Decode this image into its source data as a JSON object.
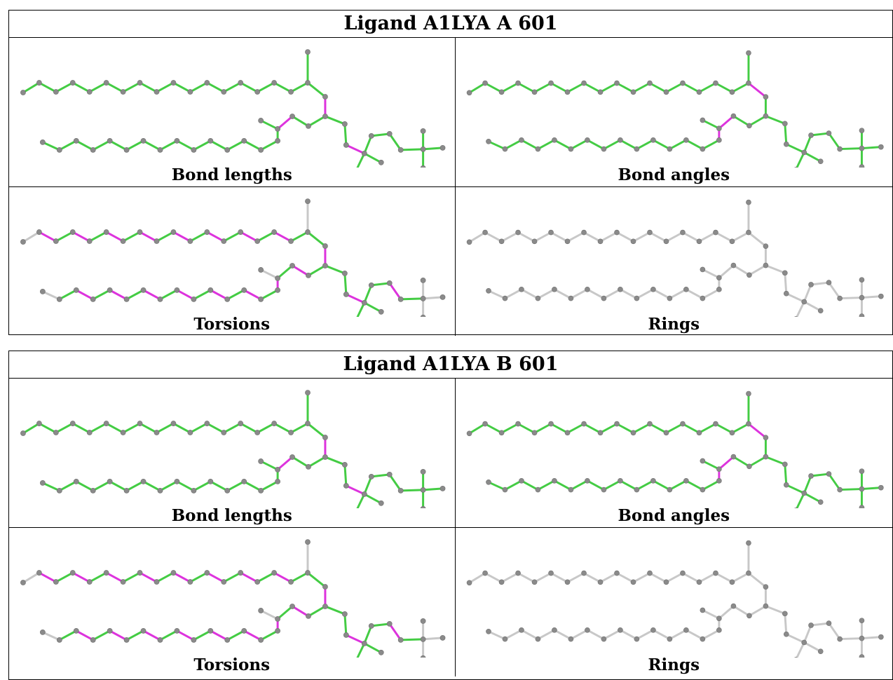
{
  "colors": {
    "good_bond": "#44cc44",
    "outlier_bond": "#dd33dd",
    "neutral_bond": "#c8c8c8",
    "atom": "#8a8a8a",
    "atom_highlight": "#d8d8d8"
  },
  "tables": [
    {
      "title": "Ligand A1LYA A 601",
      "panels": [
        {
          "label": "Bond lengths",
          "coloring": "lengths"
        },
        {
          "label": "Bond angles",
          "coloring": "angles"
        },
        {
          "label": "Torsions",
          "coloring": "torsions"
        },
        {
          "label": "Rings",
          "coloring": "rings"
        }
      ]
    },
    {
      "title": "Ligand A1LYA B 601",
      "panels": [
        {
          "label": "Bond lengths",
          "coloring": "lengths"
        },
        {
          "label": "Bond angles",
          "coloring": "angles"
        },
        {
          "label": "Torsions",
          "coloring": "torsions"
        },
        {
          "label": "Rings",
          "coloring": "rings"
        }
      ]
    }
  ]
}
